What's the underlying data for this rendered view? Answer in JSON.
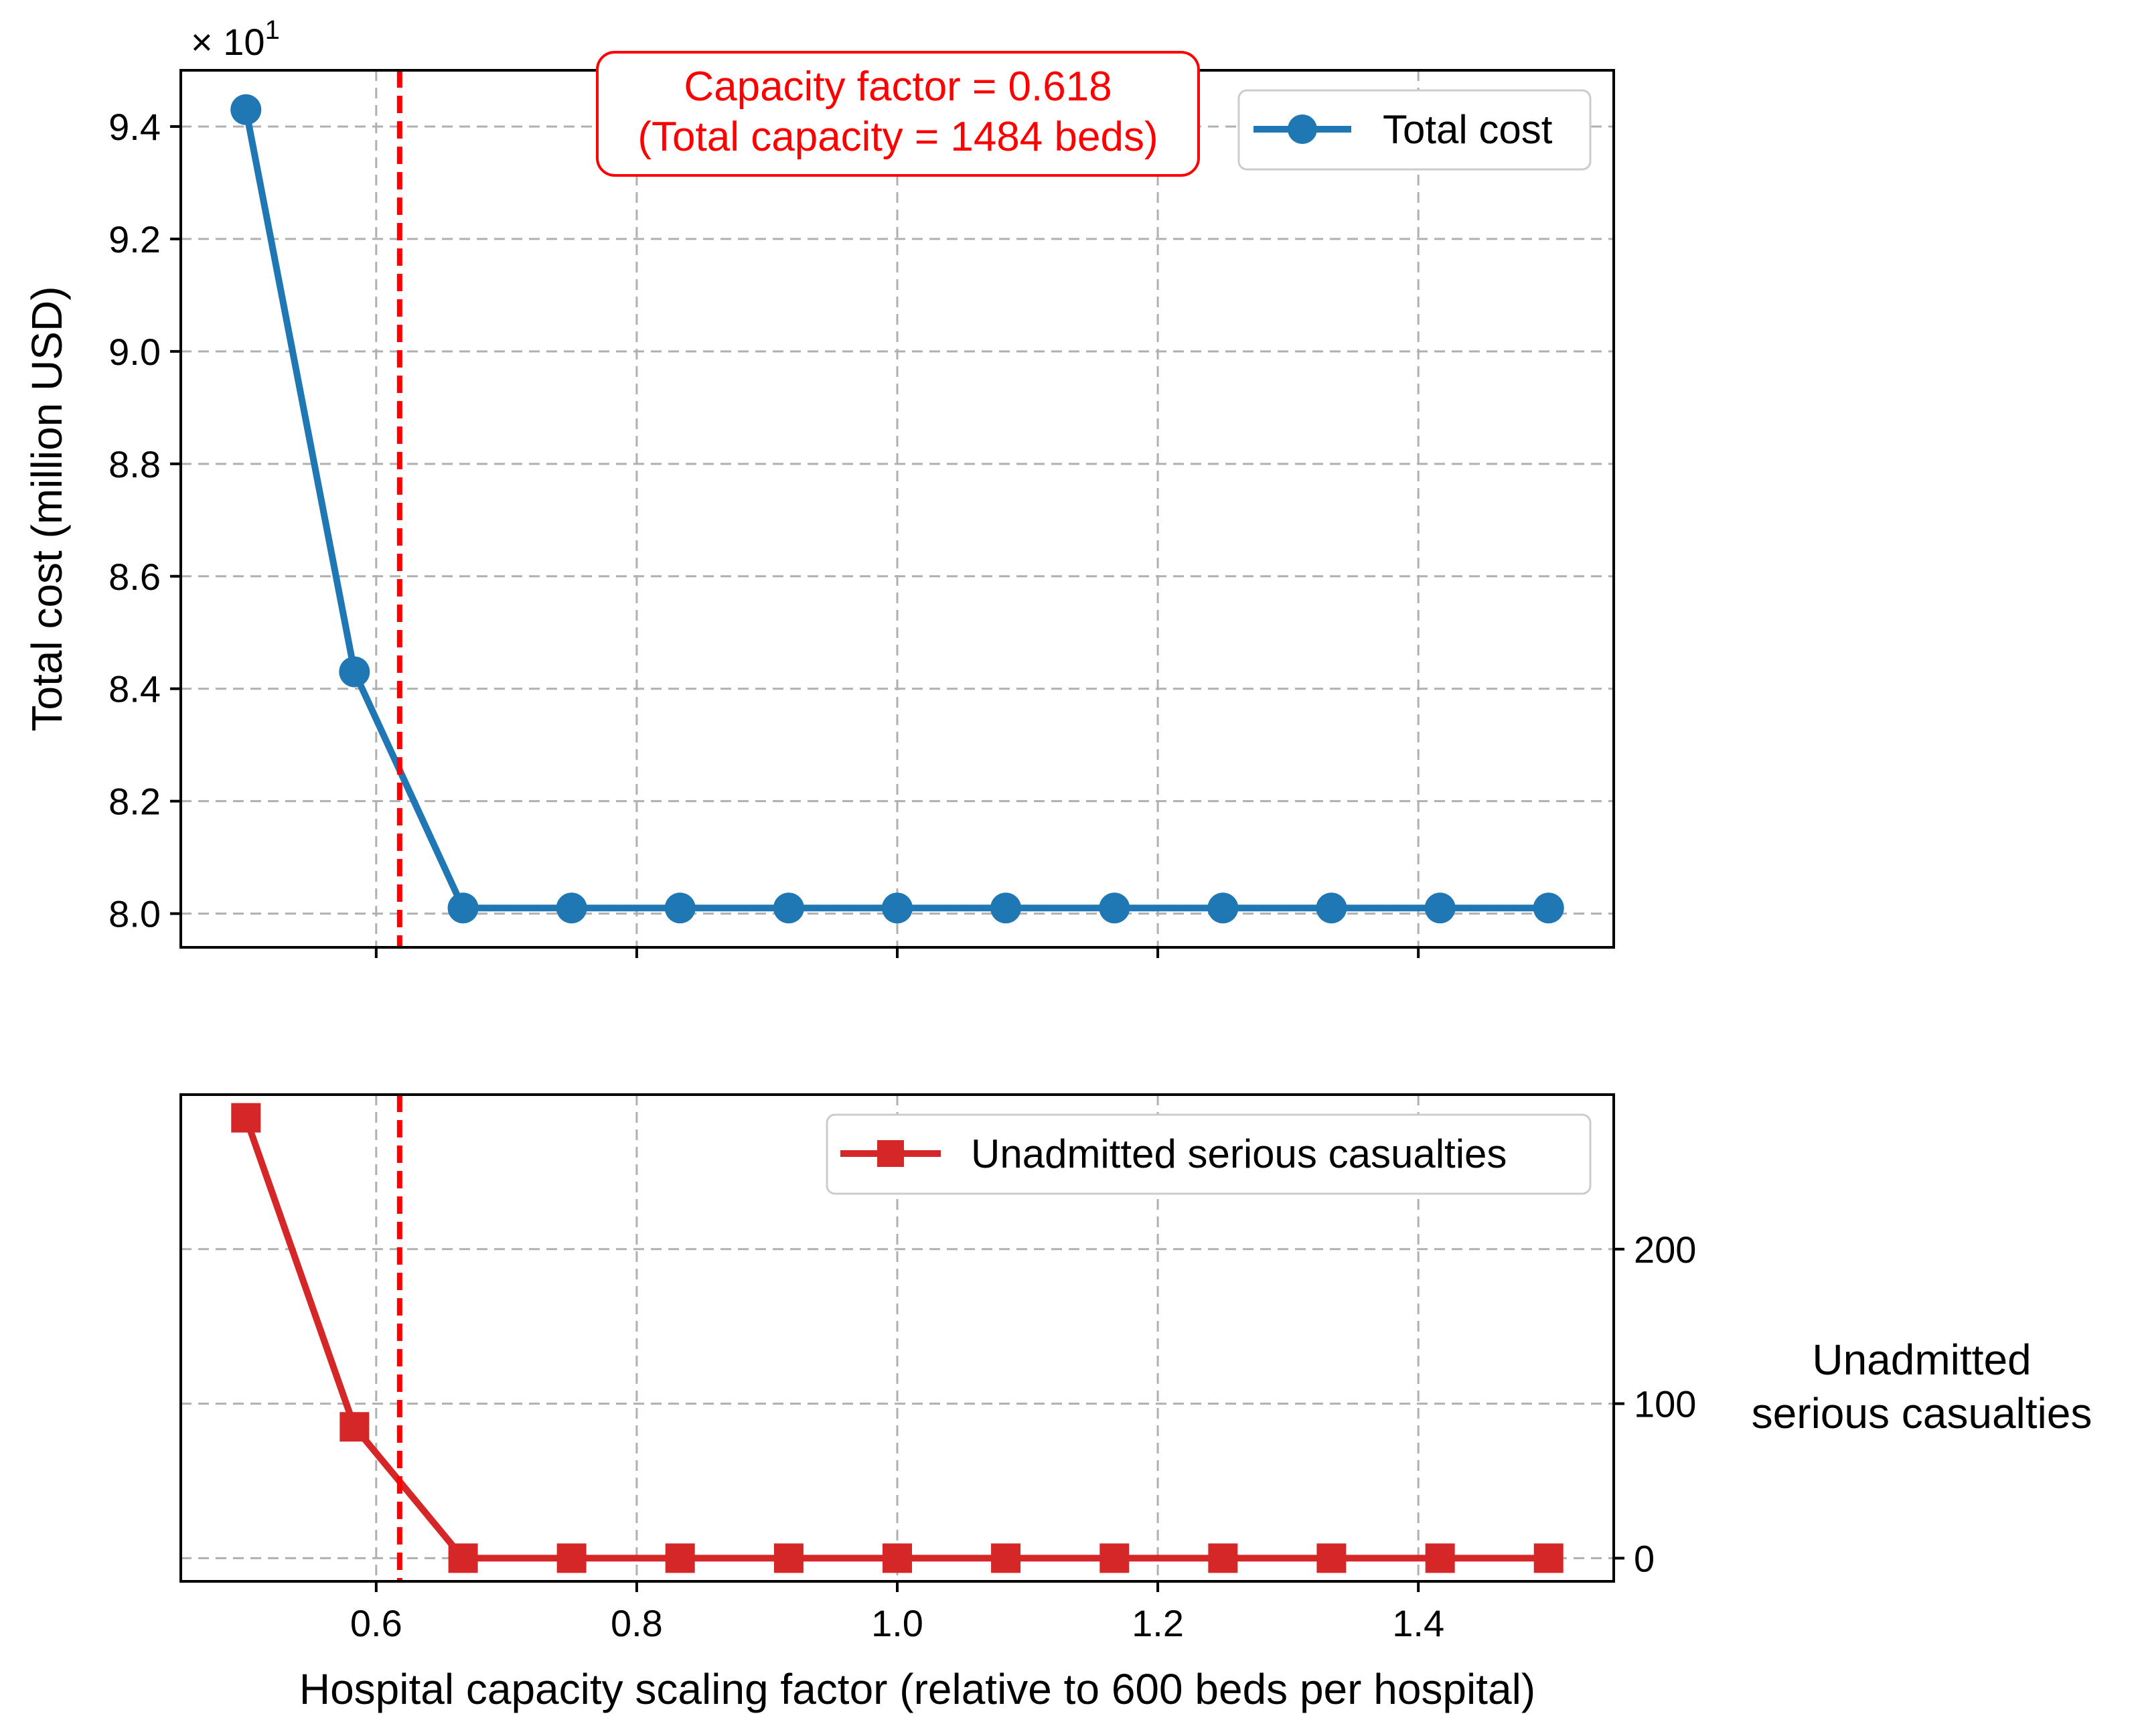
{
  "chart_data": [
    {
      "type": "line",
      "xlabel": "",
      "ylabel": "Total cost (million USD)",
      "y_multiplier": "× 10",
      "y_multiplier_exponent": "1",
      "xlim": [
        0.45,
        1.55
      ],
      "ylim": [
        7.94,
        9.5
      ],
      "x_ticks": [
        0.6,
        0.8,
        1.0,
        1.2,
        1.4
      ],
      "y_ticks": [
        8.0,
        8.2,
        8.4,
        8.6,
        8.8,
        9.0,
        9.2,
        9.4
      ],
      "y_tick_labels": [
        "8.0",
        "8.2",
        "8.4",
        "8.6",
        "8.8",
        "9.0",
        "9.2",
        "9.4"
      ],
      "grid": true,
      "legend_position": "top-right",
      "series": [
        {
          "name": "Total cost",
          "color": "#1f77b4",
          "marker": "circle",
          "x": [
            0.5,
            0.5833,
            0.6667,
            0.75,
            0.8333,
            0.9167,
            1.0,
            1.0833,
            1.1667,
            1.25,
            1.3333,
            1.4167,
            1.5
          ],
          "values": [
            9.43,
            8.43,
            8.01,
            8.01,
            8.01,
            8.01,
            8.01,
            8.01,
            8.01,
            8.01,
            8.01,
            8.01,
            8.01
          ]
        }
      ],
      "vline": {
        "x": 0.618,
        "color": "#ff0000"
      },
      "annotation": {
        "line1": "Capacity factor = 0.618",
        "line2": "(Total capacity = 1484 beds)",
        "color": "#ff0000"
      }
    },
    {
      "type": "line",
      "xlabel": "Hospital capacity scaling factor (relative to 600 beds per hospital)",
      "ylabel_line1": "Unadmitted",
      "ylabel_line2": "serious casualties",
      "xlim": [
        0.45,
        1.55
      ],
      "ylim": [
        -15,
        300
      ],
      "x_ticks": [
        0.6,
        0.8,
        1.0,
        1.2,
        1.4
      ],
      "x_tick_labels": [
        "0.6",
        "0.8",
        "1.0",
        "1.2",
        "1.4"
      ],
      "y_ticks": [
        0,
        100,
        200
      ],
      "y_tick_labels": [
        "0",
        "100",
        "200"
      ],
      "y_axis_side": "right",
      "grid": true,
      "legend_position": "top-right",
      "series": [
        {
          "name": "Unadmitted serious casualties",
          "color": "#d62728",
          "marker": "square",
          "x": [
            0.5,
            0.5833,
            0.6667,
            0.75,
            0.8333,
            0.9167,
            1.0,
            1.0833,
            1.1667,
            1.25,
            1.3333,
            1.4167,
            1.5
          ],
          "values": [
            285,
            85,
            0,
            0,
            0,
            0,
            0,
            0,
            0,
            0,
            0,
            0,
            0
          ]
        }
      ],
      "vline": {
        "x": 0.618,
        "color": "#ff0000"
      }
    }
  ]
}
